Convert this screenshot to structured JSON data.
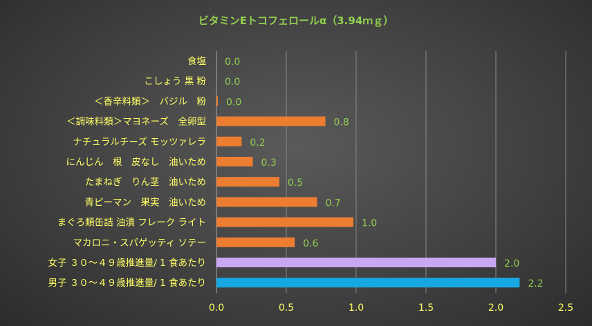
{
  "chart_data": {
    "type": "bar",
    "orientation": "horizontal",
    "title": "ビタミンEトコフェロールα（3.94ｍｇ）",
    "xlabel": "",
    "ylabel": "",
    "xlim": [
      0,
      2.5
    ],
    "x_ticks": [
      "0.0",
      "0.5",
      "1.0",
      "1.5",
      "2.0",
      "2.5"
    ],
    "grid": "vertical",
    "legend": "none",
    "colors": {
      "title": "#92d050",
      "category_label": "#ffff66",
      "data_label": "#92d050",
      "tick_label": "#ffff66",
      "grid": "#8a8a8a",
      "bar_default": "#ed7d31",
      "bar_female": "#c9a7f2",
      "bar_male": "#17a8e3"
    },
    "bars": [
      {
        "category": "食塩",
        "value": 0.0,
        "label": "0.0",
        "color": "#ed7d31"
      },
      {
        "category": "こしょう 黒 粉",
        "value": 0.0,
        "label": "0.0",
        "color": "#ed7d31"
      },
      {
        "category": "＜香辛料類＞　バジル　粉",
        "value": 0.01,
        "label": "0.0",
        "color": "#ed7d31"
      },
      {
        "category": "＜調味料類＞マヨネーズ　全卵型",
        "value": 0.78,
        "label": "0.8",
        "color": "#ed7d31"
      },
      {
        "category": "ナチュラルチーズ モッツァレラ",
        "value": 0.18,
        "label": "0.2",
        "color": "#ed7d31"
      },
      {
        "category": "にんじん　根　皮なし　油いため",
        "value": 0.26,
        "label": "0.3",
        "color": "#ed7d31"
      },
      {
        "category": "たまねぎ　りん茎　油いため",
        "value": 0.45,
        "label": "0.5",
        "color": "#ed7d31"
      },
      {
        "category": "青ピーマン　果実　油いため",
        "value": 0.72,
        "label": "0.7",
        "color": "#ed7d31"
      },
      {
        "category": "まぐろ類缶詰 油漬 フレーク ライト",
        "value": 0.98,
        "label": "1.0",
        "color": "#ed7d31"
      },
      {
        "category": "マカロニ・スパゲッティ ソテー",
        "value": 0.56,
        "label": "0.6",
        "color": "#ed7d31"
      },
      {
        "category": "女子 ３０～４９歳推進量/ 1 食あたり",
        "value": 2.0,
        "label": "2.0",
        "color": "#c9a7f2"
      },
      {
        "category": "男子 ３０～４９歳推進量/ 1 食あたり",
        "value": 2.17,
        "label": "2.2",
        "color": "#17a8e3"
      }
    ]
  }
}
